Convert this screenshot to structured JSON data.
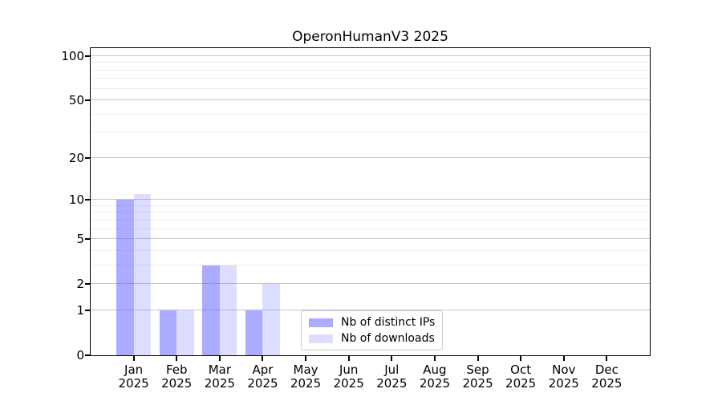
{
  "title": "OperonHumanV3 2025",
  "chart_data": {
    "type": "bar",
    "title": "OperonHumanV3 2025",
    "categories": [
      "Jan 2025",
      "Feb 2025",
      "Mar 2025",
      "Apr 2025",
      "May 2025",
      "Jun 2025",
      "Jul 2025",
      "Aug 2025",
      "Sep 2025",
      "Oct 2025",
      "Nov 2025",
      "Dec 2025"
    ],
    "series": [
      {
        "name": "Nb of distinct IPs",
        "color": "#6666ff",
        "alpha": 0.55,
        "values": [
          10,
          1,
          3,
          1,
          0,
          0,
          0,
          0,
          0,
          0,
          0,
          0
        ]
      },
      {
        "name": "Nb of downloads",
        "color": "#6666ff",
        "alpha": 0.22,
        "values": [
          11,
          1,
          3,
          2,
          0,
          0,
          0,
          0,
          0,
          0,
          0,
          0
        ]
      }
    ],
    "xlabel": "",
    "ylabel": "",
    "yscale": "log1p",
    "ylim": [
      0,
      113
    ],
    "y_ticks": [
      0,
      1,
      2,
      5,
      10,
      20,
      50,
      100
    ],
    "y_minor_ticks": [
      3,
      4,
      6,
      7,
      8,
      9,
      30,
      40,
      60,
      70,
      80,
      90
    ],
    "grid": "horizontal",
    "grid_color_major": "#c8c8c8",
    "grid_color_minor": "#ededed",
    "legend_position": "inside-lower-center",
    "bar_width_fraction": 0.4
  }
}
